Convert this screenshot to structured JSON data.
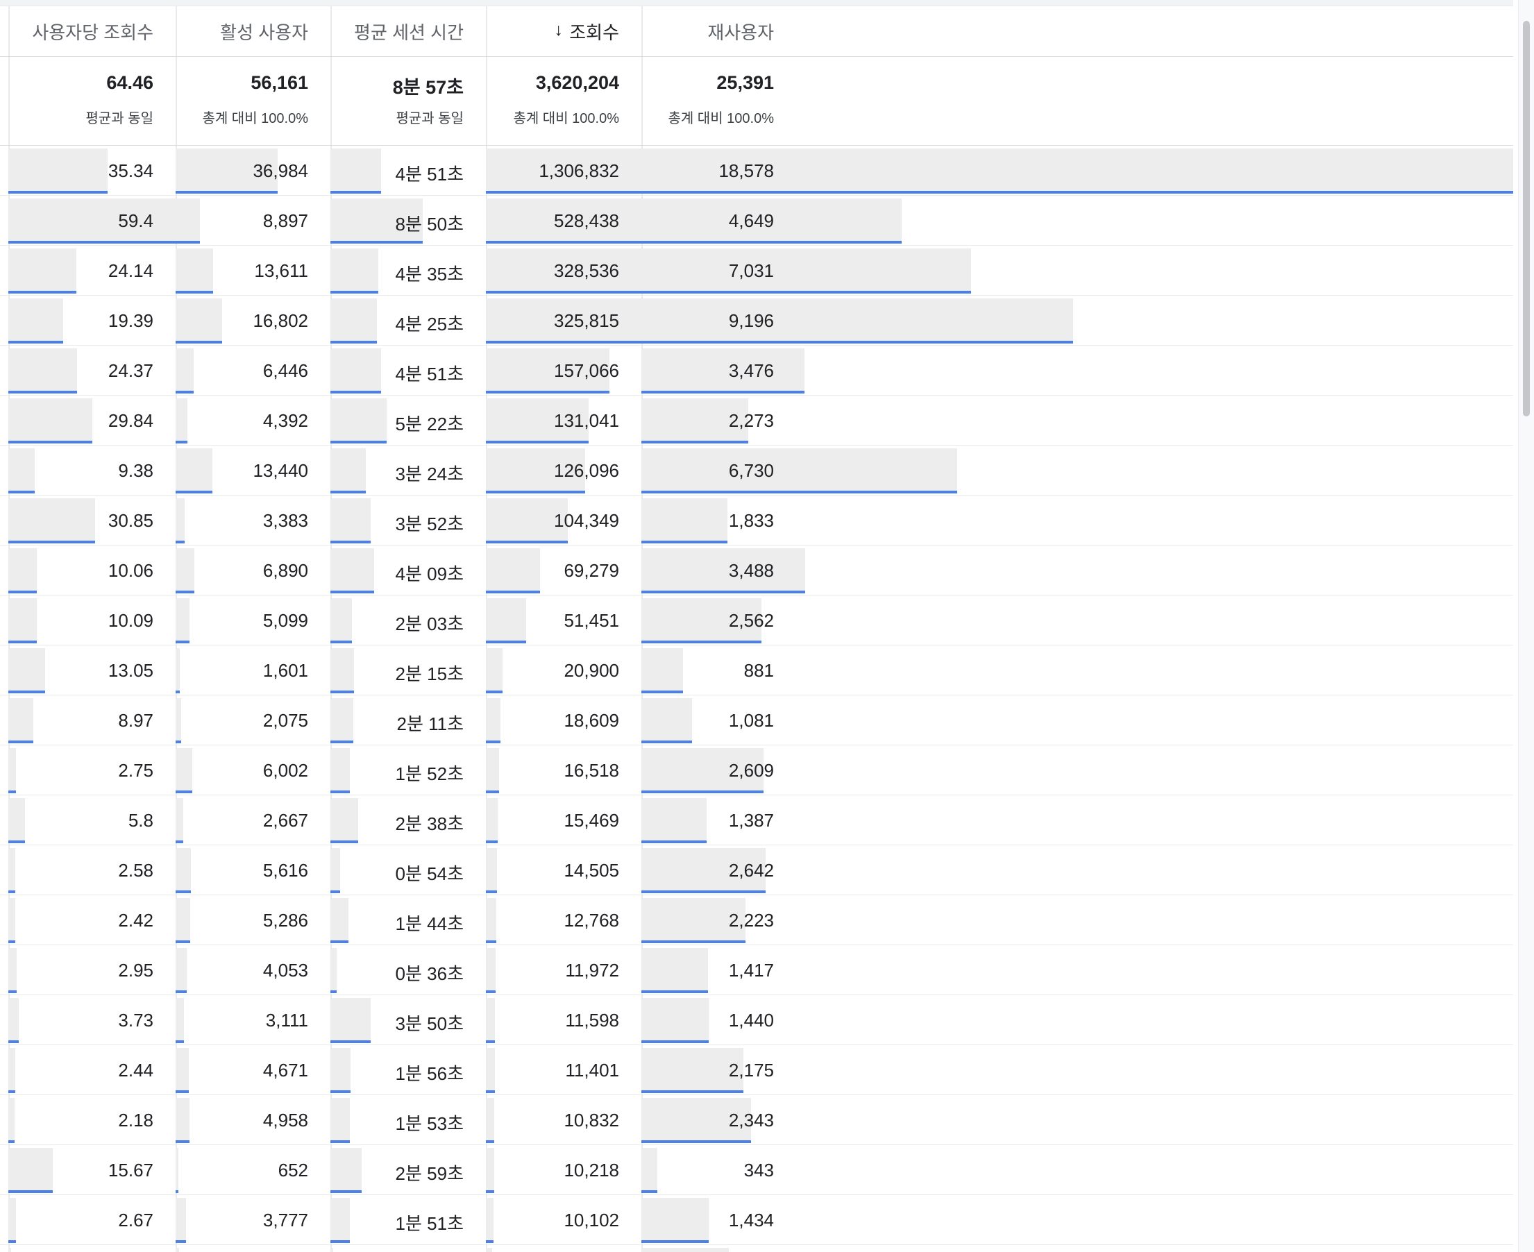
{
  "columns": [
    {
      "key": "views_per_user",
      "label": "사용자당 조회수",
      "sorted": false
    },
    {
      "key": "active_users",
      "label": "활성 사용자",
      "sorted": false
    },
    {
      "key": "avg_session",
      "label": "평균 세션 시간",
      "sorted": false
    },
    {
      "key": "views",
      "label": "조회수",
      "sorted": true,
      "sort_icon": "arrow-down-icon"
    },
    {
      "key": "returning_users",
      "label": "재사용자",
      "sorted": false
    }
  ],
  "summary": [
    {
      "value": "64.46",
      "sub": "평균과 동일"
    },
    {
      "value": "56,161",
      "sub": "총계 대비 100.0%"
    },
    {
      "value": "8분 57초",
      "sub": "평균과 동일"
    },
    {
      "value": "3,620,204",
      "sub": "총계 대비 100.0%"
    },
    {
      "value": "25,391",
      "sub": "총계 대비 100.0%"
    }
  ],
  "rows": [
    {
      "views_per_user": "35.34",
      "active_users": "36,984",
      "avg_session": "4분 51초",
      "views": "1,306,832",
      "returning_users": "18,578",
      "fills": [
        0.5949,
        0.6585,
        0.5419,
        1.0,
        1.0
      ]
    },
    {
      "views_per_user": "59.4",
      "active_users": "8,897",
      "avg_session": "8분 50초",
      "views": "528,438",
      "returning_users": "4,649",
      "fills": [
        1.0,
        0.1584,
        0.9869,
        0.4044,
        0.2502
      ]
    },
    {
      "views_per_user": "24.14",
      "active_users": "13,611",
      "avg_session": "4분 35초",
      "views": "328,536",
      "returning_users": "7,031",
      "fills": [
        0.4064,
        0.2423,
        0.5121,
        0.2514,
        0.3785
      ]
    },
    {
      "views_per_user": "19.39",
      "active_users": "16,802",
      "avg_session": "4분 25초",
      "views": "325,815",
      "returning_users": "9,196",
      "fills": [
        0.3264,
        0.2991,
        0.4935,
        0.2493,
        0.495
      ]
    },
    {
      "views_per_user": "24.37",
      "active_users": "6,446",
      "avg_session": "4분 51초",
      "views": "157,066",
      "returning_users": "3,476",
      "fills": [
        0.4103,
        0.1148,
        0.5419,
        0.1202,
        0.1871
      ]
    },
    {
      "views_per_user": "29.84",
      "active_users": "4,392",
      "avg_session": "5분 22초",
      "views": "131,041",
      "returning_users": "2,273",
      "fills": [
        0.5024,
        0.0782,
        0.5996,
        0.1003,
        0.1223
      ]
    },
    {
      "views_per_user": "9.38",
      "active_users": "13,440",
      "avg_session": "3분 24초",
      "views": "126,096",
      "returning_users": "6,730",
      "fills": [
        0.1579,
        0.2393,
        0.3799,
        0.0965,
        0.3623
      ]
    },
    {
      "views_per_user": "30.85",
      "active_users": "3,383",
      "avg_session": "3분 52초",
      "views": "104,349",
      "returning_users": "1,833",
      "fills": [
        0.5194,
        0.0602,
        0.432,
        0.0798,
        0.0987
      ]
    },
    {
      "views_per_user": "10.06",
      "active_users": "6,890",
      "avg_session": "4분 09초",
      "views": "69,279",
      "returning_users": "3,488",
      "fills": [
        0.1694,
        0.1227,
        0.4637,
        0.053,
        0.1877
      ]
    },
    {
      "views_per_user": "10.09",
      "active_users": "5,099",
      "avg_session": "2분 03초",
      "views": "51,451",
      "returning_users": "2,562",
      "fills": [
        0.1699,
        0.0908,
        0.2291,
        0.0394,
        0.1379
      ]
    },
    {
      "views_per_user": "13.05",
      "active_users": "1,601",
      "avg_session": "2분 15초",
      "views": "20,900",
      "returning_users": "881",
      "fills": [
        0.2197,
        0.0285,
        0.2514,
        0.016,
        0.0474
      ]
    },
    {
      "views_per_user": "8.97",
      "active_users": "2,075",
      "avg_session": "2분 11초",
      "views": "18,609",
      "returning_users": "1,081",
      "fills": [
        0.151,
        0.0369,
        0.2439,
        0.0142,
        0.0582
      ]
    },
    {
      "views_per_user": "2.75",
      "active_users": "6,002",
      "avg_session": "1분 52초",
      "views": "16,518",
      "returning_users": "2,609",
      "fills": [
        0.0463,
        0.1069,
        0.2086,
        0.0126,
        0.1404
      ]
    },
    {
      "views_per_user": "5.8",
      "active_users": "2,667",
      "avg_session": "2분 38초",
      "views": "15,469",
      "returning_users": "1,387",
      "fills": [
        0.0976,
        0.0475,
        0.2942,
        0.0118,
        0.0747
      ]
    },
    {
      "views_per_user": "2.58",
      "active_users": "5,616",
      "avg_session": "0분 54초",
      "views": "14,505",
      "returning_users": "2,642",
      "fills": [
        0.0434,
        0.1,
        0.1006,
        0.0111,
        0.1422
      ]
    },
    {
      "views_per_user": "2.42",
      "active_users": "5,286",
      "avg_session": "1분 44초",
      "views": "12,768",
      "returning_users": "2,223",
      "fills": [
        0.0407,
        0.0941,
        0.1937,
        0.0098,
        0.1197
      ]
    },
    {
      "views_per_user": "2.95",
      "active_users": "4,053",
      "avg_session": "0분 36초",
      "views": "11,972",
      "returning_users": "1,417",
      "fills": [
        0.0497,
        0.0722,
        0.067,
        0.0092,
        0.0763
      ]
    },
    {
      "views_per_user": "3.73",
      "active_users": "3,111",
      "avg_session": "3분 50초",
      "views": "11,598",
      "returning_users": "1,440",
      "fills": [
        0.0628,
        0.0554,
        0.4283,
        0.0089,
        0.0775
      ]
    },
    {
      "views_per_user": "2.44",
      "active_users": "4,671",
      "avg_session": "1분 56초",
      "views": "11,401",
      "returning_users": "2,175",
      "fills": [
        0.0411,
        0.0832,
        0.216,
        0.0087,
        0.1171
      ]
    },
    {
      "views_per_user": "2.18",
      "active_users": "4,958",
      "avg_session": "1분 53초",
      "views": "10,832",
      "returning_users": "2,343",
      "fills": [
        0.0367,
        0.0883,
        0.2104,
        0.0083,
        0.1261
      ]
    },
    {
      "views_per_user": "15.67",
      "active_users": "652",
      "avg_session": "2분 59초",
      "views": "10,218",
      "returning_users": "343",
      "fills": [
        0.2638,
        0.0116,
        0.3333,
        0.0078,
        0.0185
      ]
    },
    {
      "views_per_user": "2.67",
      "active_users": "3,777",
      "avg_session": "1분 51초",
      "views": "10,102",
      "returning_users": "1,434",
      "fills": [
        0.0449,
        0.0673,
        0.2067,
        0.0077,
        0.0772
      ]
    },
    {
      "views_per_user": "",
      "active_users": "",
      "avg_session": "",
      "views": "",
      "returning_users": "",
      "fills": [
        0.011,
        0.022,
        0.02,
        0.006,
        0.1
      ]
    }
  ],
  "colors": {
    "bar_fill": "#ededed",
    "bar_accent": "#4a80e8",
    "border": "#e8eaed"
  }
}
